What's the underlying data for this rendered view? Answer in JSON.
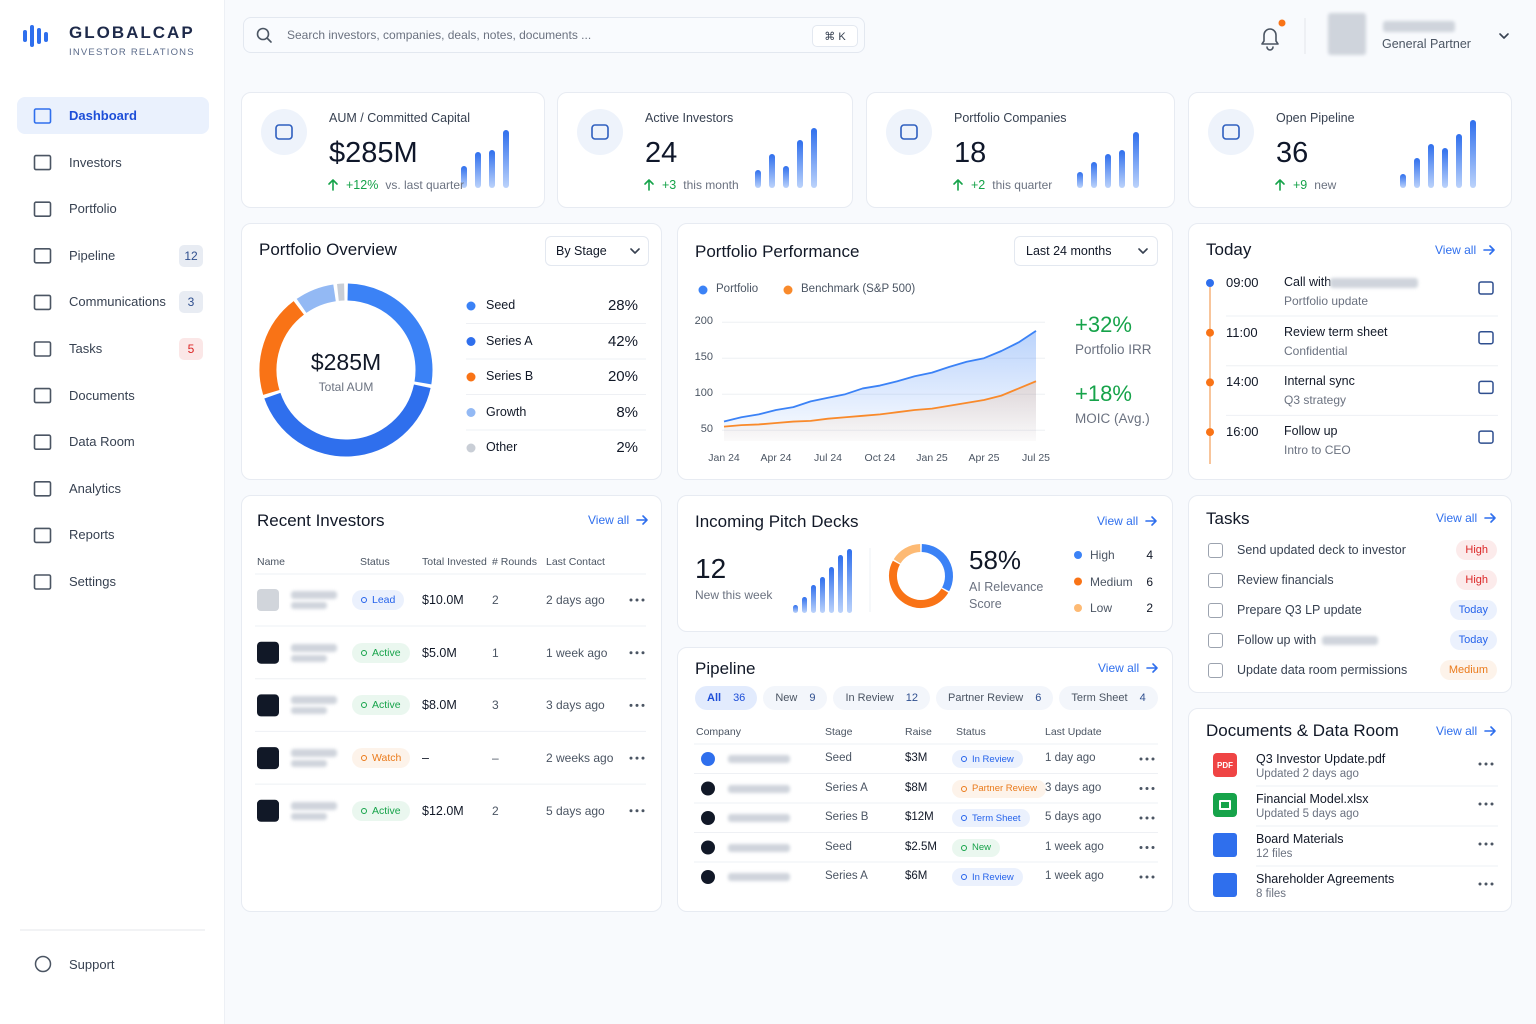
{
  "brand": {
    "name": "GLOBALCAP",
    "tagline": "INVESTOR RELATIONS"
  },
  "nav": [
    {
      "label": "Dashboard",
      "active": true
    },
    {
      "label": "Investors"
    },
    {
      "label": "Portfolio"
    },
    {
      "label": "Pipeline",
      "badge": 12,
      "badge_color": "#2f4f8f"
    },
    {
      "label": "Communications",
      "badge": 3,
      "badge_color": "#2f4f8f"
    },
    {
      "label": "Tasks",
      "badge": 5,
      "badge_color": "#dc2626"
    },
    {
      "label": "Documents"
    },
    {
      "label": "Data Room"
    },
    {
      "label": "Analytics"
    },
    {
      "label": "Reports"
    },
    {
      "label": "Settings"
    }
  ],
  "support": "Support",
  "search": {
    "placeholder": "Search investors, companies, deals, notes, documents ...",
    "shortcut": "⌘ K"
  },
  "user": {
    "role": "General Partner"
  },
  "kpis": [
    {
      "label": "AUM / Committed Capital",
      "value": "$285M",
      "delta": "+12%",
      "note": "vs. last quarter"
    },
    {
      "label": "Active Investors",
      "value": "24",
      "delta": "+3",
      "note": "this month"
    },
    {
      "label": "Portfolio Companies",
      "value": "18",
      "delta": "+2",
      "note": "this quarter"
    },
    {
      "label": "Open Pipeline",
      "value": "36",
      "delta": "+9",
      "note": "new"
    }
  ],
  "chart_data": [
    {
      "type": "pie",
      "title": "Portfolio Overview",
      "filter": "By Stage",
      "center_value": "$285M",
      "center_label": "Total AUM",
      "categories": [
        "Seed",
        "Series A",
        "Series B",
        "Growth",
        "Other"
      ],
      "values": [
        28,
        42,
        20,
        8,
        2
      ],
      "value_labels": [
        "28%",
        "42%",
        "20%",
        "8%",
        "2%"
      ],
      "colors": [
        "#3b82f6",
        "#2f6fed",
        "#f97316",
        "#93b9f4",
        "#c9ced6"
      ]
    },
    {
      "type": "line",
      "title": "Portfolio Performance",
      "filter": "Last 24 months",
      "categories": [
        "Jan 24",
        null,
        null,
        "Apr 24",
        null,
        null,
        "Jul 24",
        null,
        null,
        "Oct 24",
        null,
        null,
        "Jan 25",
        null,
        null,
        "Apr 25",
        null,
        null,
        "Jul 25"
      ],
      "series": [
        {
          "name": "Portfolio",
          "color": "#3b82f6",
          "values": [
            62,
            68,
            72,
            78,
            82,
            90,
            95,
            100,
            108,
            112,
            118,
            125,
            130,
            138,
            145,
            150,
            160,
            172,
            188
          ]
        },
        {
          "name": "Benchmark (S&P 500)",
          "color": "#f98a2b",
          "values": [
            55,
            57,
            58,
            60,
            62,
            63,
            66,
            68,
            70,
            72,
            75,
            78,
            80,
            84,
            88,
            92,
            98,
            108,
            118
          ]
        }
      ],
      "ylim": [
        35,
        210
      ],
      "yticks": [
        50,
        100,
        150,
        200
      ],
      "grid": true,
      "stats": [
        {
          "value": "+32%",
          "label": "Portfolio IRR"
        },
        {
          "value": "+18%",
          "label": "MOIC (Avg.)"
        }
      ]
    },
    {
      "type": "pie",
      "title": "Incoming Pitch Decks",
      "view_all": "View all",
      "new_count": 12,
      "new_label": "New this week",
      "score": "58%",
      "score_label": "AI Relevance Score",
      "categories": [
        "High",
        "Medium",
        "Low"
      ],
      "values": [
        4,
        6,
        2
      ],
      "colors": [
        "#3b82f6",
        "#f97316",
        "#fdba74"
      ]
    }
  ],
  "today": {
    "title": "Today",
    "view_all": "View all",
    "events": [
      {
        "time": "09:00",
        "title": "Call with",
        "subtitle": "Portfolio update"
      },
      {
        "time": "11:00",
        "title": "Review term sheet",
        "subtitle": "Confidential"
      },
      {
        "time": "14:00",
        "title": "Internal sync",
        "subtitle": "Q3 strategy"
      },
      {
        "time": "16:00",
        "title": "Follow up",
        "subtitle": "Intro to CEO"
      }
    ]
  },
  "recent_investors": {
    "title": "Recent Investors",
    "view_all": "View all",
    "columns": [
      "Name",
      "Status",
      "Total Invested",
      "# Rounds",
      "Last Contact"
    ],
    "rows": [
      {
        "status": "Lead",
        "status_color": "#2563eb",
        "invested": "$10.0M",
        "rounds": "2",
        "last_contact": "2 days ago"
      },
      {
        "status": "Active",
        "status_color": "#16a34a",
        "invested": "$5.0M",
        "rounds": "1",
        "last_contact": "1 week ago"
      },
      {
        "status": "Active",
        "status_color": "#16a34a",
        "invested": "$8.0M",
        "rounds": "3",
        "last_contact": "3 days ago"
      },
      {
        "status": "Watch",
        "status_color": "#ea7a1a",
        "invested": "–",
        "rounds": "–",
        "last_contact": "2 weeks ago"
      },
      {
        "status": "Active",
        "status_color": "#16a34a",
        "invested": "$12.0M",
        "rounds": "2",
        "last_contact": "5 days ago"
      }
    ]
  },
  "pipeline": {
    "title": "Pipeline",
    "view_all": "View all",
    "tabs": [
      {
        "label": "All",
        "count": 36,
        "active": true
      },
      {
        "label": "New",
        "count": 9
      },
      {
        "label": "In Review",
        "count": 12
      },
      {
        "label": "Partner Review",
        "count": 6
      },
      {
        "label": "Term Sheet",
        "count": 4
      }
    ],
    "columns": [
      "Company",
      "Stage",
      "Raise",
      "Status",
      "Last Update"
    ],
    "rows": [
      {
        "stage": "Seed",
        "raise": "$3M",
        "status": "In Review",
        "status_color": "#2563eb",
        "last_update": "1 day ago"
      },
      {
        "stage": "Series A",
        "raise": "$8M",
        "status": "Partner Review",
        "status_color": "#ea7a1a",
        "last_update": "3 days ago"
      },
      {
        "stage": "Series B",
        "raise": "$12M",
        "status": "Term Sheet",
        "status_color": "#2563eb",
        "last_update": "5 days ago"
      },
      {
        "stage": "Seed",
        "raise": "$2.5M",
        "status": "New",
        "status_color": "#16a34a",
        "last_update": "1 week ago"
      },
      {
        "stage": "Series A",
        "raise": "$6M",
        "status": "In Review",
        "status_color": "#2563eb",
        "last_update": "1 week ago"
      }
    ]
  },
  "tasks": {
    "title": "Tasks",
    "view_all": "View all",
    "items": [
      {
        "text": "Send updated deck to investor",
        "priority": "High",
        "priority_color": "#dc2626"
      },
      {
        "text": "Review financials",
        "priority": "High",
        "priority_color": "#dc2626"
      },
      {
        "text": "Prepare Q3 LP update",
        "priority": "Today",
        "priority_color": "#2563eb"
      },
      {
        "text": "Follow up with",
        "priority": "Today",
        "priority_color": "#2563eb",
        "redacted": true
      },
      {
        "text": "Update data room permissions",
        "priority": "Medium",
        "priority_color": "#ea7a1a"
      }
    ]
  },
  "documents": {
    "title": "Documents & Data Room",
    "view_all": "View all",
    "items": [
      {
        "name": "Q3 Investor Update.pdf",
        "meta": "Updated 2 days ago",
        "icon_label": "PDF",
        "icon_color": "#ef4444"
      },
      {
        "name": "Financial Model.xlsx",
        "meta": "Updated 5 days ago",
        "icon_color": "#16a34a"
      },
      {
        "name": "Board Materials",
        "meta": "12 files",
        "icon_color": "#2f6fed"
      },
      {
        "name": "Shareholder Agreements",
        "meta": "8 files",
        "icon_color": "#2f6fed"
      }
    ]
  }
}
